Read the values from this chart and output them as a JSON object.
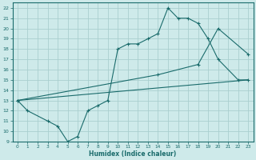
{
  "xlabel": "Humidex (Indice chaleur)",
  "xlim": [
    -0.5,
    23.5
  ],
  "ylim": [
    9,
    22.5
  ],
  "xticks": [
    0,
    1,
    2,
    3,
    4,
    5,
    6,
    7,
    8,
    9,
    10,
    11,
    12,
    13,
    14,
    15,
    16,
    17,
    18,
    19,
    20,
    21,
    22,
    23
  ],
  "yticks": [
    9,
    10,
    11,
    12,
    13,
    14,
    15,
    16,
    17,
    18,
    19,
    20,
    21,
    22
  ],
  "bg_color": "#ceeaea",
  "grid_color": "#aacfcf",
  "line_color": "#1a6b6b",
  "line1_x": [
    0,
    1,
    3,
    4,
    5,
    6,
    7,
    8,
    9,
    10,
    11,
    12,
    13,
    14,
    15,
    16,
    17,
    18,
    19,
    20,
    22,
    23
  ],
  "line1_y": [
    13,
    12,
    11,
    10.5,
    9,
    9.5,
    12,
    12.5,
    13,
    18,
    18.5,
    18.5,
    19,
    19.5,
    22,
    21,
    21,
    20.5,
    19,
    17,
    15,
    15
  ],
  "line2_x": [
    0,
    14,
    18,
    20,
    23
  ],
  "line2_y": [
    13,
    15.5,
    16.5,
    20,
    17.5
  ],
  "line3_x": [
    0,
    23
  ],
  "line3_y": [
    13,
    15
  ]
}
